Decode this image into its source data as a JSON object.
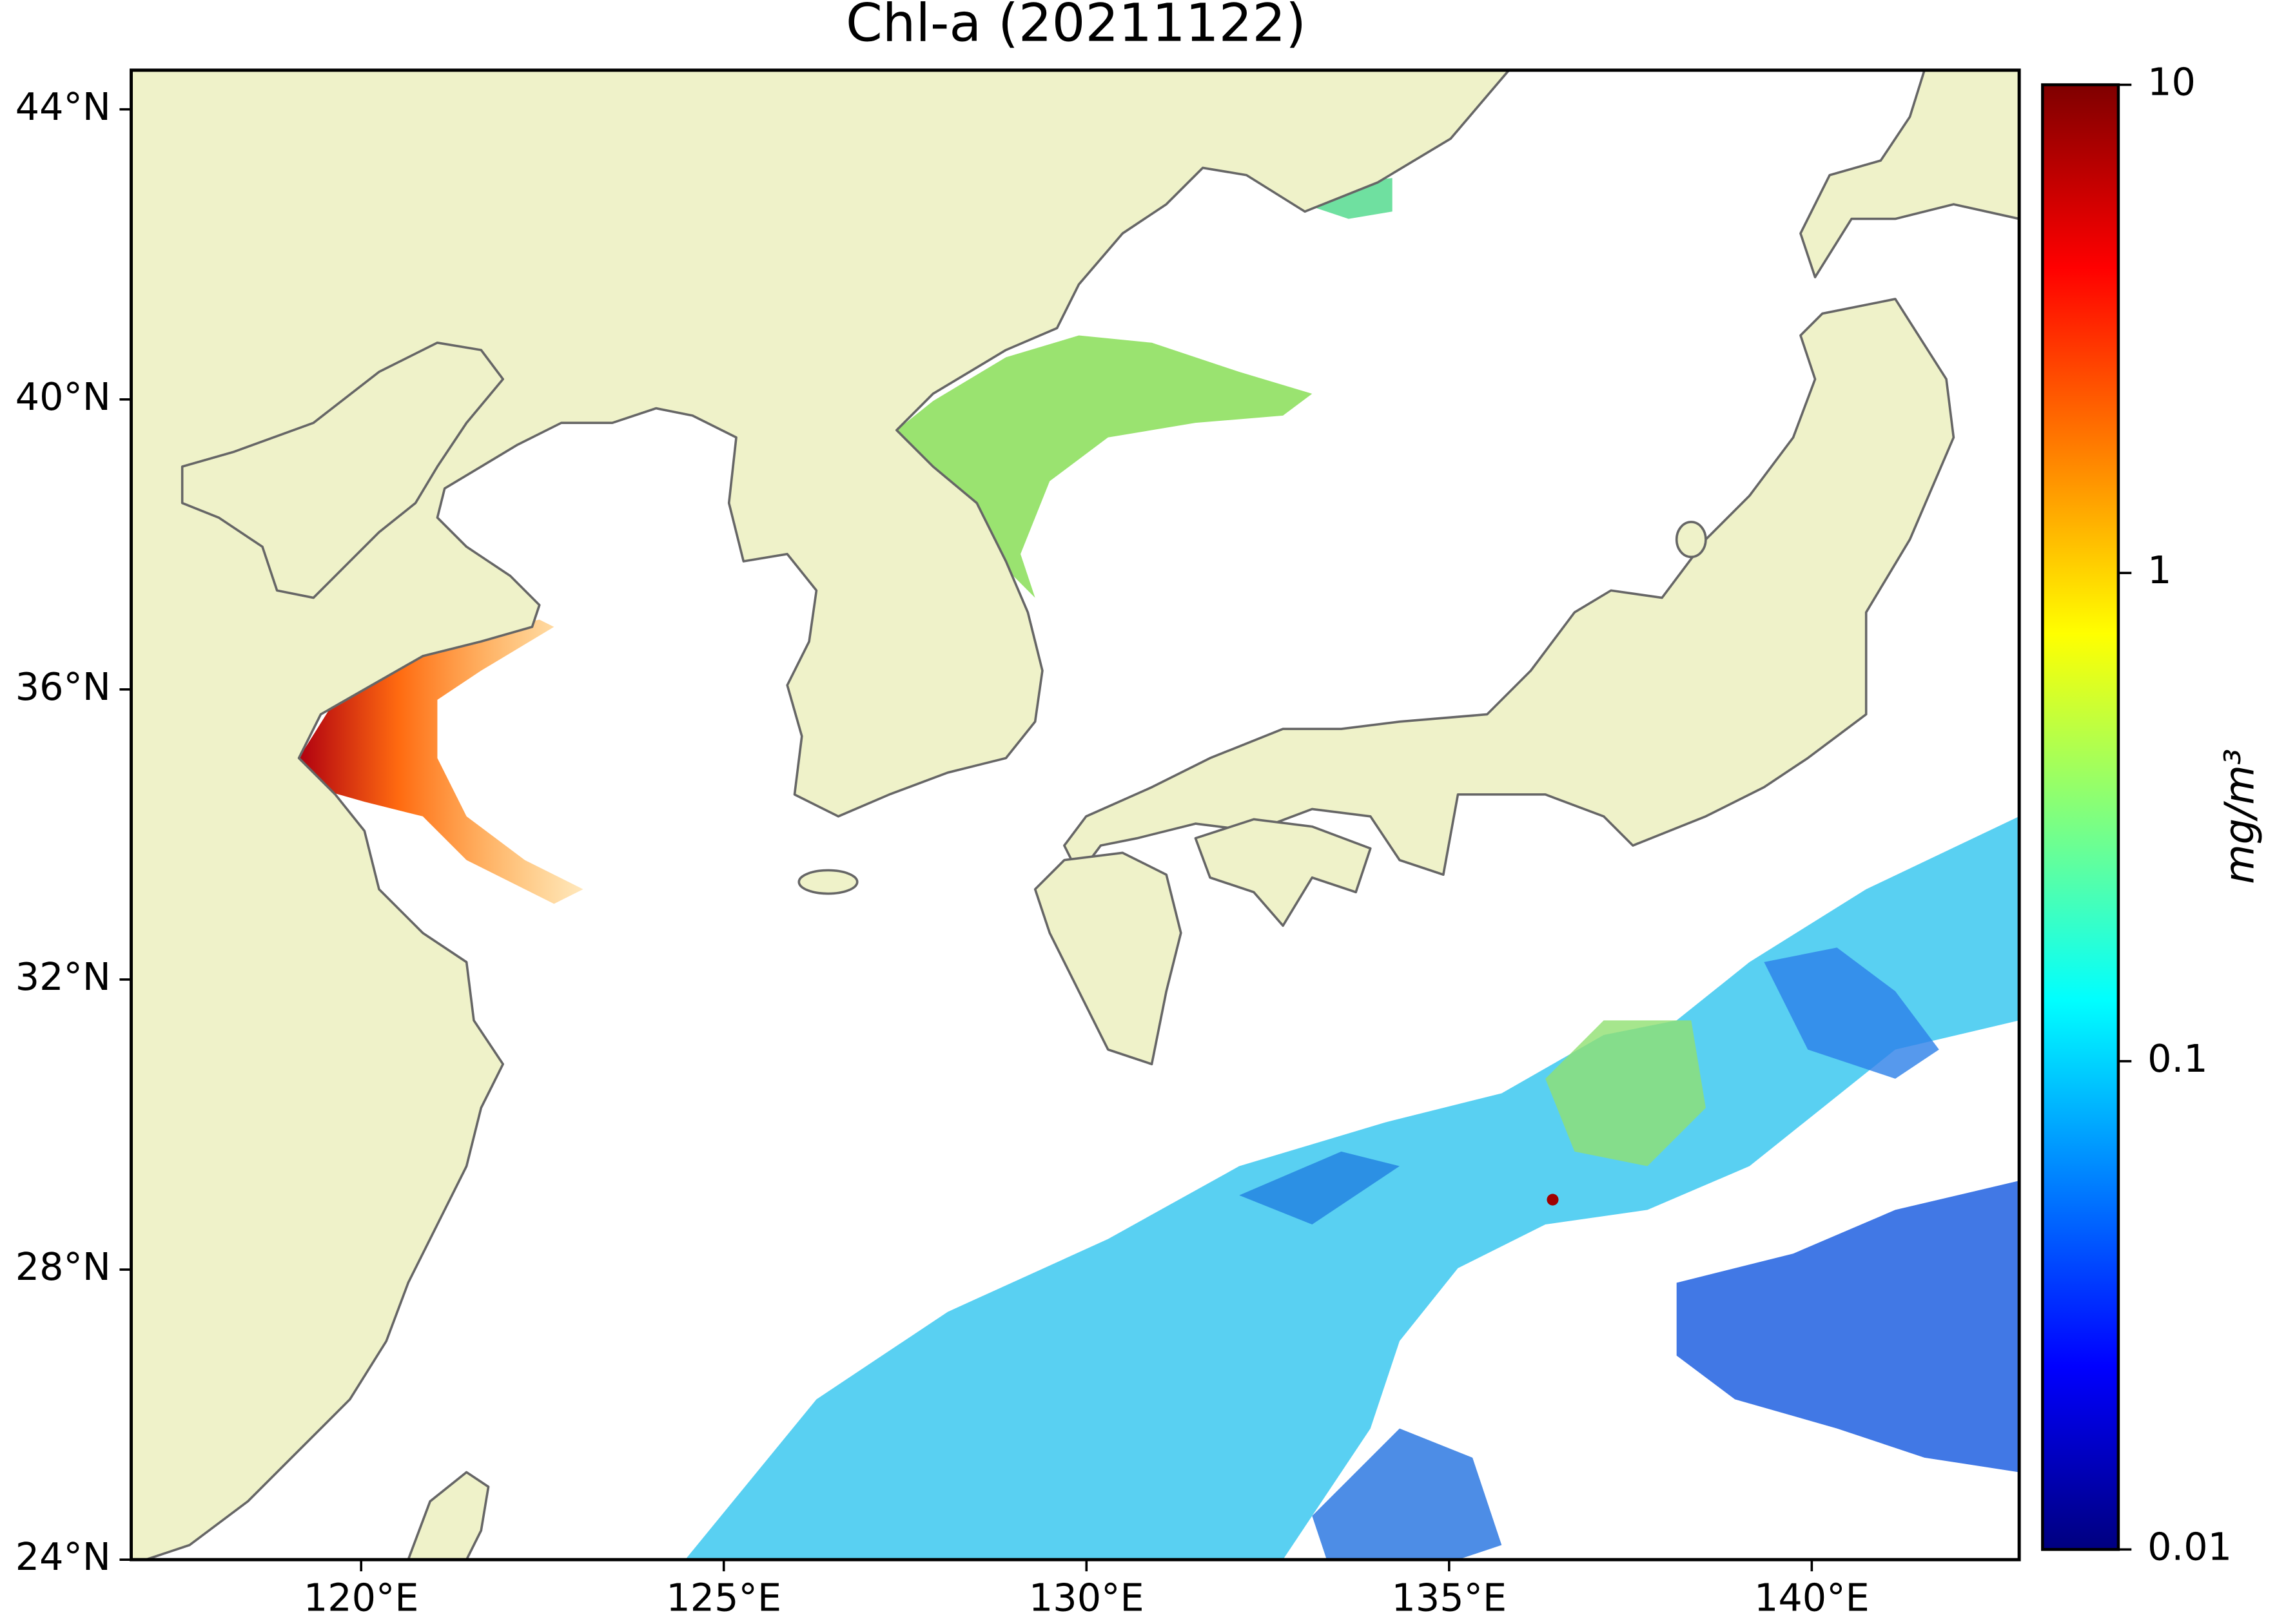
{
  "chart_data": {
    "type": "map",
    "title": "Chl-a (20211122)",
    "xlim": [
      116.83,
      142.86
    ],
    "xticks": [
      {
        "value": 120,
        "label": "120°E"
      },
      {
        "value": 125,
        "label": "125°E"
      },
      {
        "value": 130,
        "label": "130°E"
      },
      {
        "value": 135,
        "label": "135°E"
      },
      {
        "value": 140,
        "label": "140°E"
      }
    ],
    "ylim": [
      24,
      44.54
    ],
    "yticks": [
      {
        "value": 24,
        "label": "24°N"
      },
      {
        "value": 28,
        "label": "28°N"
      },
      {
        "value": 32,
        "label": "32°N"
      },
      {
        "value": 36,
        "label": "36°N"
      },
      {
        "value": 40,
        "label": "40°N"
      },
      {
        "value": 44,
        "label": "44°N"
      }
    ],
    "colorbar": {
      "label": "mg/m³",
      "colormap": "jet",
      "log_scale": true,
      "lim": [
        0.01,
        10
      ],
      "ticks": [
        0.01,
        0.1,
        1,
        10
      ]
    }
  }
}
